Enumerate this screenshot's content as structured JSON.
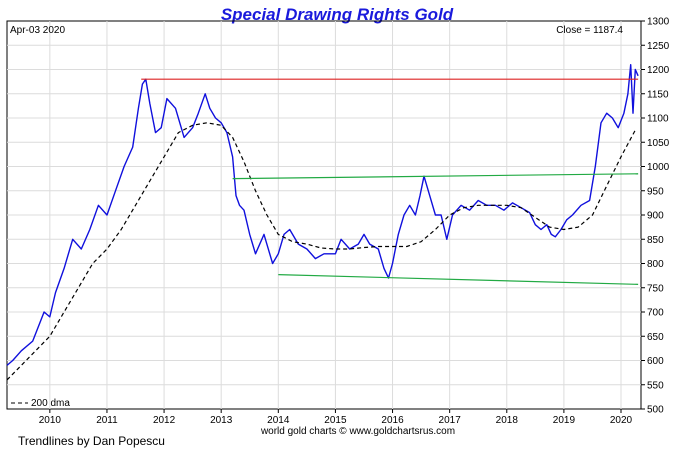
{
  "chart_data": {
    "type": "line",
    "title": "Special Drawing Rights Gold",
    "date_label": "Apr-03  2020",
    "close_label": "Close = 1187.4",
    "source_label": "world gold charts © www.goldchartsrus.com",
    "credit": "Trendlines by Dan Popescu",
    "legend": {
      "label": "200 dma",
      "placement": "bottom-left"
    },
    "xlim": [
      2009.25,
      2020.35
    ],
    "ylim": [
      500,
      1300
    ],
    "x_ticks": [
      2010,
      2011,
      2012,
      2013,
      2014,
      2015,
      2016,
      2017,
      2018,
      2019,
      2020
    ],
    "x_tick_labels": [
      "2010",
      "2011",
      "2012",
      "2013",
      "2014",
      "2015",
      "2016",
      "2017",
      "2018",
      "2019",
      "2020"
    ],
    "y_ticks": [
      500,
      550,
      600,
      650,
      700,
      750,
      800,
      850,
      900,
      950,
      1000,
      1050,
      1100,
      1150,
      1200,
      1250,
      1300
    ],
    "y_tick_labels": [
      "500",
      "550",
      "600",
      "650",
      "700",
      "750",
      "800",
      "850",
      "900",
      "950",
      "1000",
      "1050",
      "1100",
      "1150",
      "1200",
      "1250",
      "1300"
    ],
    "grid": true,
    "colors": {
      "price": "#1010dd",
      "dma": "#000000",
      "resistance": "#dd2222",
      "channel": "#22aa44",
      "title": "#1a1adc"
    },
    "series": [
      {
        "name": "",
        "style": "line",
        "x": [
          2009.25,
          2009.35,
          2009.5,
          2009.7,
          2009.9,
          2010.0,
          2010.1,
          2010.25,
          2010.4,
          2010.55,
          2010.7,
          2010.85,
          2011.0,
          2011.15,
          2011.3,
          2011.45,
          2011.55,
          2011.62,
          2011.68,
          2011.75,
          2011.85,
          2011.95,
          2012.05,
          2012.2,
          2012.35,
          2012.5,
          2012.6,
          2012.72,
          2012.8,
          2012.9,
          2013.0,
          2013.1,
          2013.2,
          2013.26,
          2013.32,
          2013.4,
          2013.5,
          2013.6,
          2013.75,
          2013.9,
          2014.0,
          2014.1,
          2014.2,
          2014.35,
          2014.5,
          2014.65,
          2014.8,
          2015.0,
          2015.1,
          2015.25,
          2015.4,
          2015.5,
          2015.6,
          2015.75,
          2015.85,
          2015.93,
          2016.0,
          2016.1,
          2016.2,
          2016.3,
          2016.4,
          2016.48,
          2016.55,
          2016.65,
          2016.75,
          2016.85,
          2016.95,
          2017.05,
          2017.2,
          2017.35,
          2017.5,
          2017.65,
          2017.8,
          2017.95,
          2018.1,
          2018.25,
          2018.4,
          2018.5,
          2018.6,
          2018.7,
          2018.78,
          2018.85,
          2018.95,
          2019.05,
          2019.15,
          2019.3,
          2019.45,
          2019.55,
          2019.65,
          2019.75,
          2019.85,
          2019.95,
          2020.05,
          2020.12,
          2020.17,
          2020.21,
          2020.25,
          2020.3
        ],
        "y": [
          590,
          600,
          620,
          640,
          700,
          690,
          740,
          790,
          850,
          830,
          870,
          920,
          900,
          950,
          1000,
          1040,
          1120,
          1170,
          1180,
          1130,
          1070,
          1080,
          1140,
          1120,
          1060,
          1080,
          1110,
          1150,
          1120,
          1100,
          1090,
          1070,
          1020,
          940,
          920,
          910,
          860,
          820,
          860,
          800,
          820,
          860,
          870,
          840,
          830,
          810,
          820,
          820,
          850,
          830,
          840,
          860,
          840,
          830,
          790,
          770,
          800,
          860,
          900,
          920,
          900,
          940,
          980,
          940,
          900,
          900,
          850,
          900,
          920,
          910,
          930,
          920,
          920,
          910,
          925,
          915,
          905,
          880,
          870,
          880,
          860,
          855,
          870,
          890,
          900,
          920,
          930,
          1000,
          1090,
          1110,
          1100,
          1080,
          1110,
          1150,
          1210,
          1110,
          1200,
          1187
        ]
      },
      {
        "name": "200 dma",
        "style": "dashed",
        "x": [
          2009.25,
          2009.5,
          2009.75,
          2010.0,
          2010.25,
          2010.5,
          2010.75,
          2011.0,
          2011.25,
          2011.5,
          2011.75,
          2012.0,
          2012.25,
          2012.5,
          2012.75,
          2013.0,
          2013.2,
          2013.4,
          2013.6,
          2013.8,
          2014.0,
          2014.25,
          2014.5,
          2014.75,
          2015.0,
          2015.25,
          2015.5,
          2015.75,
          2016.0,
          2016.25,
          2016.5,
          2016.75,
          2017.0,
          2017.25,
          2017.5,
          2017.75,
          2018.0,
          2018.25,
          2018.5,
          2018.75,
          2019.0,
          2019.25,
          2019.5,
          2019.75,
          2020.0,
          2020.25
        ],
        "y": [
          560,
          590,
          620,
          650,
          700,
          750,
          800,
          830,
          870,
          920,
          970,
          1020,
          1070,
          1085,
          1090,
          1085,
          1060,
          1010,
          950,
          900,
          860,
          845,
          840,
          832,
          830,
          830,
          833,
          835,
          835,
          835,
          845,
          870,
          900,
          915,
          920,
          920,
          920,
          915,
          895,
          875,
          870,
          875,
          900,
          960,
          1020,
          1075
        ]
      }
    ],
    "trendlines": [
      {
        "name": "",
        "color": "resistance",
        "x": [
          2011.6,
          2020.3
        ],
        "y": [
          1180,
          1180
        ]
      },
      {
        "name": "",
        "color": "channel",
        "x": [
          2013.2,
          2020.3
        ],
        "y": [
          975,
          985
        ]
      },
      {
        "name": "",
        "color": "channel",
        "x": [
          2014.0,
          2020.3
        ],
        "y": [
          777,
          757
        ]
      }
    ]
  }
}
